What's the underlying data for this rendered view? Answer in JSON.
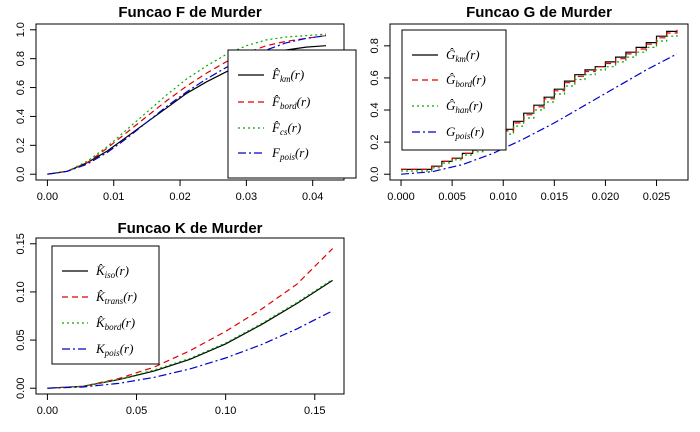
{
  "chart_data": [
    {
      "type": "line",
      "title": "Funcao F de Murder",
      "xlabel": "",
      "ylabel": "",
      "xlim": [
        0,
        0.043
      ],
      "ylim": [
        0,
        1.0
      ],
      "xticks": [
        "0.00",
        "0.01",
        "0.02",
        "0.03",
        "0.04"
      ],
      "yticks": [
        "0.0",
        "0.2",
        "0.4",
        "0.6",
        "0.8",
        "1.0"
      ],
      "legend_position": "right",
      "series": [
        {
          "name": "F̂km(r)",
          "base": "F̂",
          "sub": "km",
          "arg": "(r)",
          "color": "#000000",
          "dash": "",
          "x": [
            0,
            0.003,
            0.006,
            0.009,
            0.012,
            0.015,
            0.018,
            0.021,
            0.024,
            0.027,
            0.03,
            0.033,
            0.036,
            0.039,
            0.042
          ],
          "y": [
            0,
            0.02,
            0.08,
            0.16,
            0.26,
            0.36,
            0.46,
            0.56,
            0.64,
            0.71,
            0.77,
            0.82,
            0.86,
            0.88,
            0.89
          ]
        },
        {
          "name": "F̂bord(r)",
          "base": "F̂",
          "sub": "bord",
          "arg": "(r)",
          "color": "#dd0000",
          "dash": "6,4",
          "x": [
            0,
            0.003,
            0.006,
            0.009,
            0.012,
            0.015,
            0.018,
            0.021,
            0.024,
            0.027,
            0.03,
            0.033,
            0.036,
            0.039,
            0.042
          ],
          "y": [
            0,
            0.02,
            0.08,
            0.18,
            0.29,
            0.4,
            0.51,
            0.61,
            0.7,
            0.78,
            0.84,
            0.89,
            0.92,
            0.94,
            0.96
          ]
        },
        {
          "name": "F̂cs(r)",
          "base": "F̂",
          "sub": "cs",
          "arg": "(r)",
          "color": "#00aa00",
          "dash": "2,3",
          "x": [
            0,
            0.003,
            0.006,
            0.009,
            0.012,
            0.015,
            0.018,
            0.021,
            0.024,
            0.027,
            0.03,
            0.033,
            0.036,
            0.039,
            0.042
          ],
          "y": [
            0,
            0.02,
            0.09,
            0.19,
            0.31,
            0.43,
            0.55,
            0.66,
            0.75,
            0.83,
            0.89,
            0.93,
            0.95,
            0.96,
            0.97
          ]
        },
        {
          "name": "Fpois(r)",
          "base": "F",
          "sub": "pois",
          "arg": "(r)",
          "color": "#0000cc",
          "dash": "8,3,2,3",
          "x": [
            0,
            0.003,
            0.006,
            0.009,
            0.012,
            0.015,
            0.018,
            0.021,
            0.024,
            0.027,
            0.03,
            0.033,
            0.036,
            0.039,
            0.042
          ],
          "y": [
            0,
            0.02,
            0.07,
            0.15,
            0.25,
            0.36,
            0.47,
            0.57,
            0.66,
            0.74,
            0.81,
            0.86,
            0.91,
            0.94,
            0.96
          ]
        }
      ]
    },
    {
      "type": "line",
      "title": "Funcao G de Murder",
      "xlabel": "",
      "ylabel": "",
      "xlim": [
        0,
        0.027
      ],
      "ylim": [
        0,
        0.9
      ],
      "xticks": [
        "0.000",
        "0.005",
        "0.010",
        "0.015",
        "0.020",
        "0.025"
      ],
      "yticks": [
        "0.0",
        "0.2",
        "0.4",
        "0.6",
        "0.8"
      ],
      "legend_position": "top-left",
      "series": [
        {
          "name": "Ĝkm(r)",
          "base": "Ĝ",
          "sub": "km",
          "arg": "(r)",
          "color": "#000000",
          "dash": "",
          "step": true,
          "x": [
            0,
            0.002,
            0.003,
            0.004,
            0.005,
            0.006,
            0.007,
            0.008,
            0.009,
            0.01,
            0.011,
            0.012,
            0.013,
            0.014,
            0.015,
            0.016,
            0.017,
            0.018,
            0.019,
            0.02,
            0.021,
            0.022,
            0.023,
            0.024,
            0.025,
            0.026,
            0.027
          ],
          "y": [
            0.03,
            0.03,
            0.05,
            0.08,
            0.1,
            0.13,
            0.16,
            0.18,
            0.22,
            0.28,
            0.33,
            0.38,
            0.43,
            0.48,
            0.53,
            0.58,
            0.62,
            0.65,
            0.67,
            0.7,
            0.73,
            0.76,
            0.79,
            0.82,
            0.86,
            0.89,
            0.89
          ]
        },
        {
          "name": "Ĝbord(r)",
          "base": "Ĝ",
          "sub": "bord",
          "arg": "(r)",
          "color": "#dd0000",
          "dash": "6,4",
          "step": true,
          "x": [
            0,
            0.002,
            0.003,
            0.004,
            0.005,
            0.006,
            0.007,
            0.008,
            0.009,
            0.01,
            0.011,
            0.012,
            0.013,
            0.014,
            0.015,
            0.016,
            0.017,
            0.018,
            0.019,
            0.02,
            0.021,
            0.022,
            0.023,
            0.024,
            0.025,
            0.026,
            0.027
          ],
          "y": [
            0.03,
            0.03,
            0.05,
            0.08,
            0.1,
            0.13,
            0.15,
            0.18,
            0.22,
            0.27,
            0.32,
            0.37,
            0.42,
            0.47,
            0.52,
            0.57,
            0.61,
            0.64,
            0.67,
            0.69,
            0.72,
            0.75,
            0.78,
            0.81,
            0.85,
            0.88,
            0.9
          ]
        },
        {
          "name": "Ĝhan(r)",
          "base": "Ĝ",
          "sub": "han",
          "arg": "(r)",
          "color": "#00aa00",
          "dash": "2,3",
          "step": true,
          "x": [
            0,
            0.002,
            0.003,
            0.004,
            0.005,
            0.006,
            0.007,
            0.008,
            0.009,
            0.01,
            0.011,
            0.012,
            0.013,
            0.014,
            0.015,
            0.016,
            0.017,
            0.018,
            0.019,
            0.02,
            0.021,
            0.022,
            0.023,
            0.024,
            0.025,
            0.026,
            0.027
          ],
          "y": [
            0.02,
            0.02,
            0.04,
            0.07,
            0.09,
            0.12,
            0.14,
            0.17,
            0.2,
            0.25,
            0.3,
            0.35,
            0.4,
            0.45,
            0.5,
            0.55,
            0.59,
            0.62,
            0.65,
            0.67,
            0.7,
            0.73,
            0.76,
            0.79,
            0.83,
            0.86,
            0.88
          ]
        },
        {
          "name": "Gpois(r)",
          "base": "G",
          "sub": "pois",
          "arg": "(r)",
          "color": "#0000cc",
          "dash": "8,3,2,3",
          "x": [
            0,
            0.003,
            0.006,
            0.009,
            0.012,
            0.015,
            0.018,
            0.021,
            0.024,
            0.027
          ],
          "y": [
            0,
            0.015,
            0.06,
            0.13,
            0.22,
            0.32,
            0.43,
            0.54,
            0.65,
            0.75
          ]
        }
      ]
    },
    {
      "type": "line",
      "title": "Funcao K de Murder",
      "xlabel": "",
      "ylabel": "",
      "xlim": [
        0,
        0.16
      ],
      "ylim": [
        0,
        0.15
      ],
      "xticks": [
        "0.00",
        "0.05",
        "0.10",
        "0.15"
      ],
      "yticks": [
        "0.00",
        "0.05",
        "0.10",
        "0.15"
      ],
      "legend_position": "top-left",
      "series": [
        {
          "name": "K̂iso(r)",
          "base": "K̂",
          "sub": "iso",
          "arg": "(r)",
          "color": "#000000",
          "dash": "",
          "x": [
            0,
            0.02,
            0.04,
            0.06,
            0.08,
            0.1,
            0.12,
            0.14,
            0.16
          ],
          "y": [
            0,
            0.002,
            0.009,
            0.018,
            0.03,
            0.046,
            0.066,
            0.088,
            0.112
          ]
        },
        {
          "name": "K̂trans(r)",
          "base": "K̂",
          "sub": "trans",
          "arg": "(r)",
          "color": "#dd0000",
          "dash": "6,4",
          "x": [
            0,
            0.02,
            0.04,
            0.06,
            0.08,
            0.1,
            0.12,
            0.14,
            0.16
          ],
          "y": [
            0,
            0.002,
            0.01,
            0.022,
            0.039,
            0.059,
            0.082,
            0.108,
            0.145
          ]
        },
        {
          "name": "K̂bord(r)",
          "base": "K̂",
          "sub": "bord",
          "arg": "(r)",
          "color": "#00aa00",
          "dash": "2,3",
          "x": [
            0,
            0.02,
            0.04,
            0.06,
            0.08,
            0.1,
            0.12,
            0.14,
            0.16
          ],
          "y": [
            0,
            0.002,
            0.009,
            0.019,
            0.031,
            0.047,
            0.067,
            0.089,
            0.113
          ]
        },
        {
          "name": "Kpois(r)",
          "base": "K",
          "sub": "pois",
          "arg": "(r)",
          "color": "#0000cc",
          "dash": "8,3,2,3",
          "x": [
            0,
            0.02,
            0.04,
            0.06,
            0.08,
            0.1,
            0.12,
            0.14,
            0.16
          ],
          "y": [
            0,
            0.0013,
            0.005,
            0.0113,
            0.0201,
            0.0314,
            0.0452,
            0.0616,
            0.0804
          ]
        }
      ]
    }
  ]
}
